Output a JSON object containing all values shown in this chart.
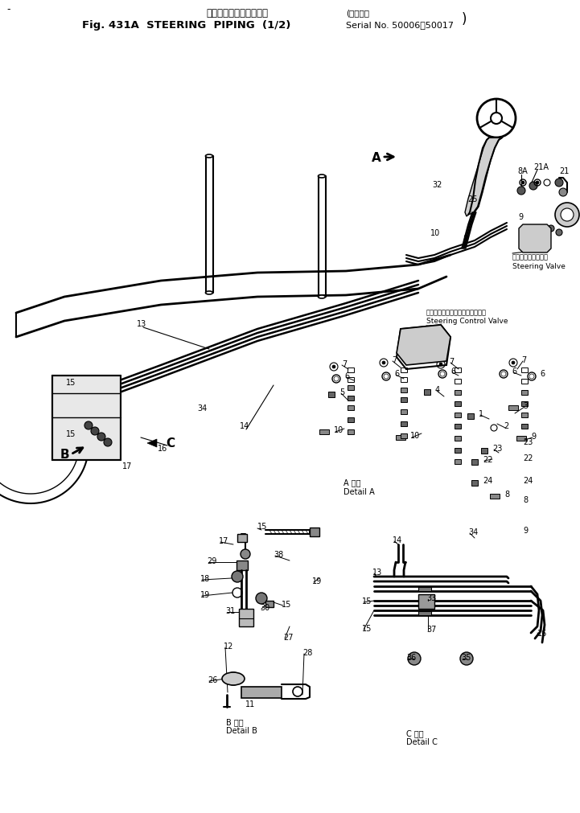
{
  "title_jp": "ステアリングパイピング",
  "title_en": "Fig. 431A  STEERING  PIPING  (1/2)",
  "serial_jp": "適用号機",
  "serial_en": "Serial No. 50006～50017",
  "steering_valve_jp": "ステアリングバルブ",
  "steering_valve_en": "Steering Valve",
  "control_valve_jp": "ステアリングコントロールバルブ",
  "control_valve_en": "Steering Control Valve",
  "detail_a_jp": "A 詳細",
  "detail_a_en": "Detail A",
  "detail_b_jp": "B 詳細",
  "detail_b_en": "Detail B",
  "detail_c_jp": "C 詳細",
  "detail_c_en": "Detail C",
  "bg_color": "#ffffff",
  "fig_width": 7.21,
  "fig_height": 10.12,
  "dpi": 100
}
